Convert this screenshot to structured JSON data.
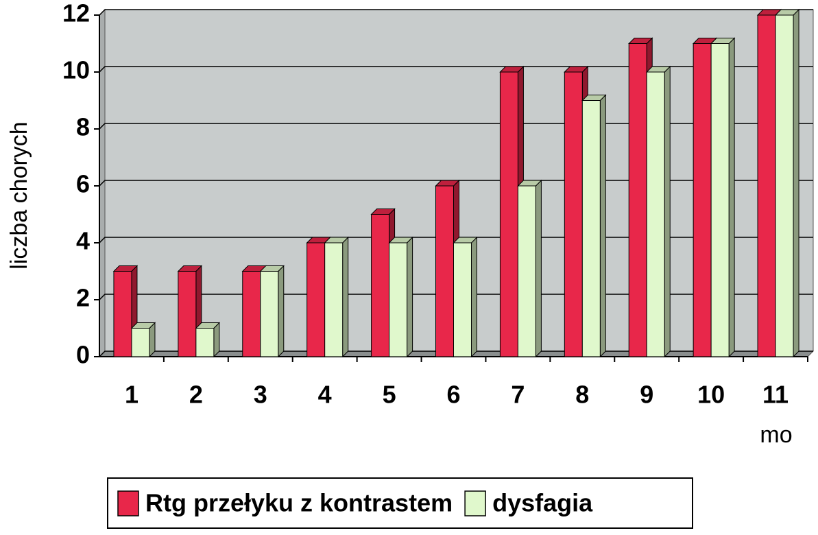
{
  "chart_data": {
    "type": "bar3d",
    "y_label": "liczba chorych",
    "x_label": "mo",
    "categories": [
      "1",
      "2",
      "3",
      "4",
      "5",
      "6",
      "7",
      "8",
      "9",
      "10",
      "11"
    ],
    "series": [
      {
        "name": "Rtg przełyku z kontrastem",
        "color": "#e8274a",
        "values": [
          3,
          3,
          3,
          4,
          5,
          6,
          10,
          10,
          11,
          11,
          12
        ]
      },
      {
        "name": "dysfagia",
        "color": "#e0f8cc",
        "values": [
          1,
          1,
          3,
          4,
          4,
          4,
          6,
          9,
          10,
          11,
          12
        ]
      }
    ],
    "ylim": [
      0,
      12
    ],
    "yticks": [
      0,
      2,
      4,
      6,
      8,
      10,
      12
    ],
    "grid": true
  }
}
